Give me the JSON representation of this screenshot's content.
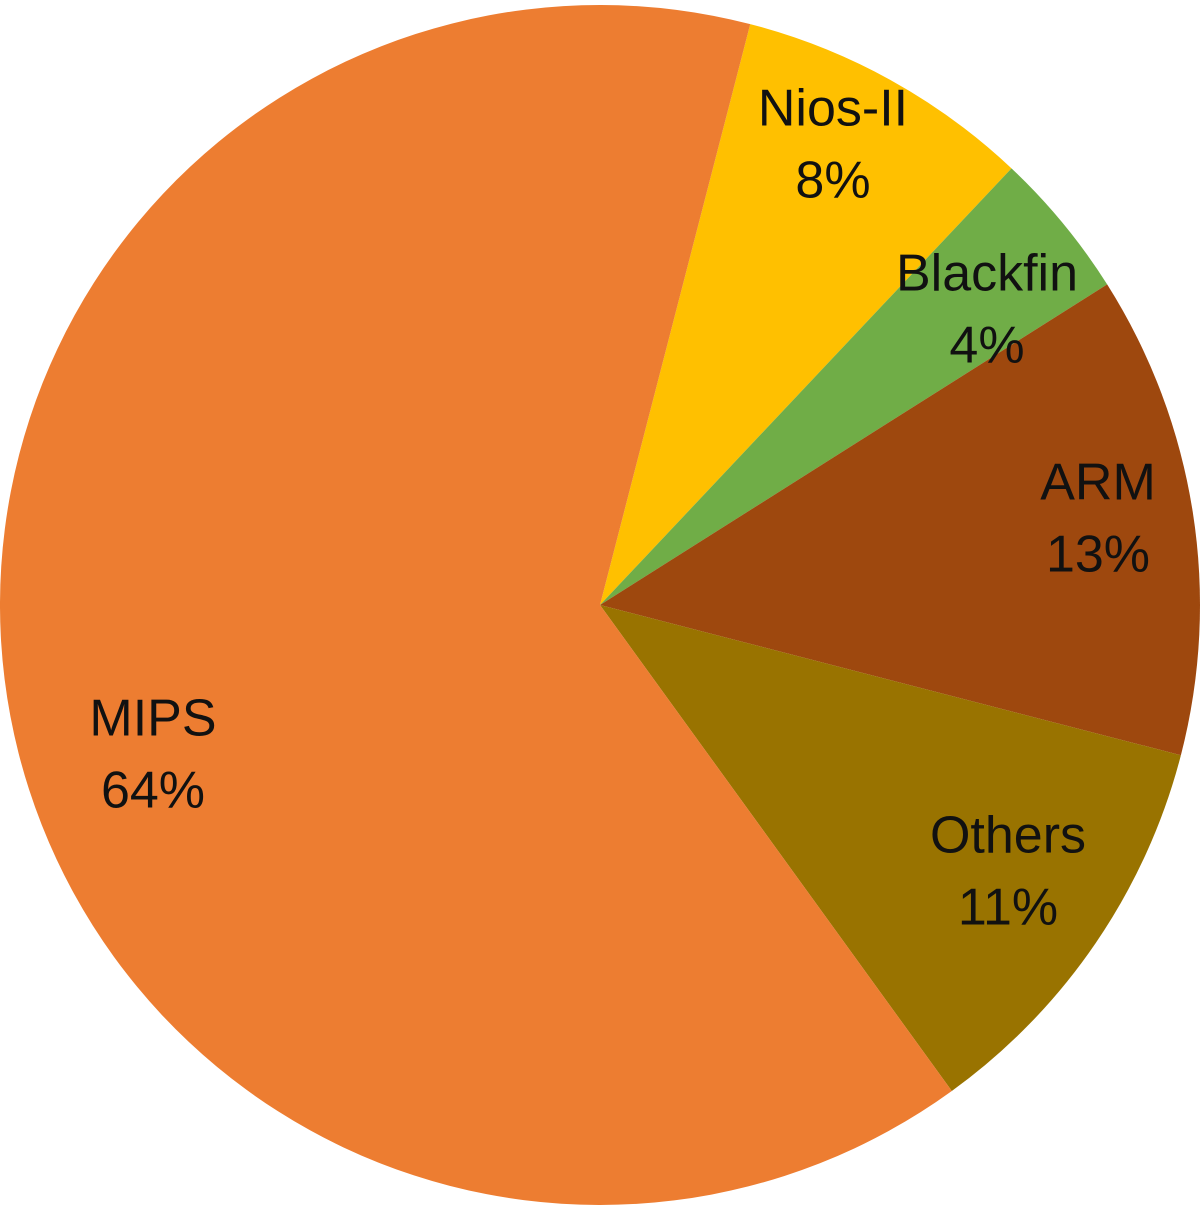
{
  "chart_data": {
    "type": "pie",
    "title": "",
    "start_category": "Nios-II",
    "direction": "clockwise",
    "categories": [
      "Nios-II",
      "Blackfin",
      "ARM",
      "Others",
      "MIPS"
    ],
    "values": [
      8,
      4,
      13,
      11,
      64
    ],
    "labels": [
      "8%",
      "4%",
      "13%",
      "11%",
      "64%"
    ],
    "colors": [
      "#FFC000",
      "#70AD47",
      "#9E480E",
      "#997300",
      "#ED7D31"
    ],
    "legend": "none",
    "data_labels": "category-and-percent"
  }
}
